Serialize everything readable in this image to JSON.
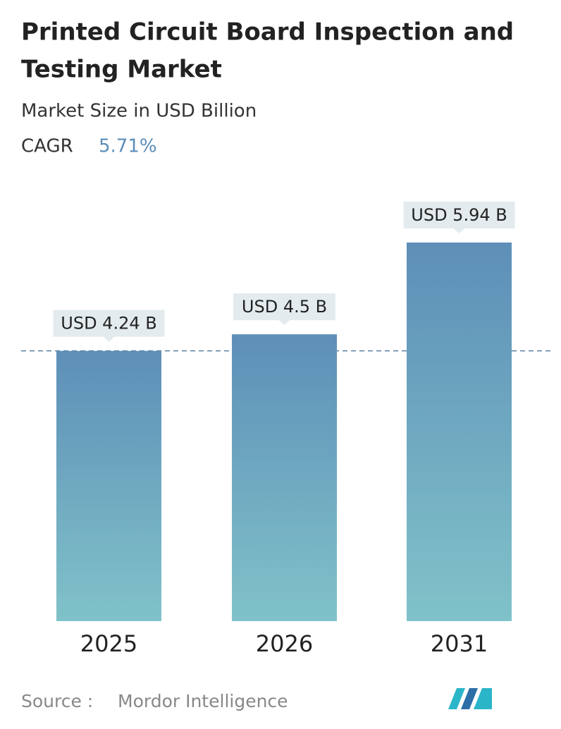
{
  "chart_data": {
    "type": "bar",
    "title": "Printed Circuit Board Inspection and",
    "title_line2": "Testing Market",
    "subtitle": "Market Size in USD Billion",
    "cagr_label": "CAGR",
    "cagr_value": "5.71%",
    "categories": [
      "2025",
      "2026",
      "2031"
    ],
    "values": [
      4.24,
      4.5,
      5.94
    ],
    "value_labels": [
      "USD 4.24 B",
      "USD 4.5 B",
      "USD 5.94 B"
    ],
    "source_label": "Source :",
    "source": "Mordor Intelligence"
  }
}
